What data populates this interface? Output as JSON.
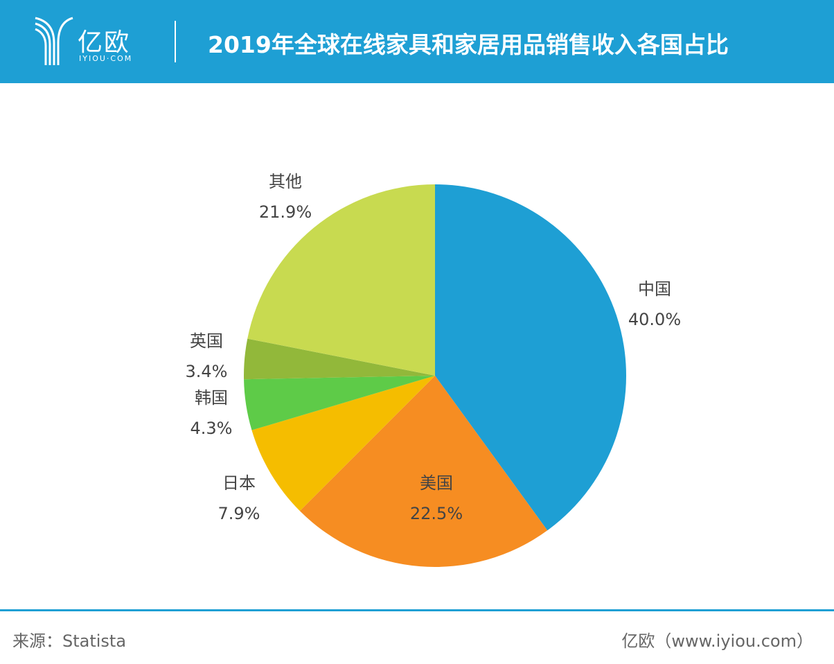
{
  "header": {
    "logo_text": "亿欧",
    "logo_sub": "IYIOU·COM",
    "title": "2019年全球在线家具和家居用品销售收入各国占比"
  },
  "chart_data": {
    "type": "pie",
    "title": "2019年全球在线家具和家居用品销售收入各国占比",
    "start": "top",
    "direction": "clockwise",
    "slices": [
      {
        "label": "中国",
        "value": 40.0,
        "display": "40.0%",
        "color": "#1e9fd4"
      },
      {
        "label": "美国",
        "value": 22.5,
        "display": "22.5%",
        "color": "#f68d22"
      },
      {
        "label": "日本",
        "value": 7.9,
        "display": "7.9%",
        "color": "#f5bd00"
      },
      {
        "label": "韩国",
        "value": 4.3,
        "display": "4.3%",
        "color": "#5ecb48"
      },
      {
        "label": "英国",
        "value": 3.4,
        "display": "3.4%",
        "color": "#92b83a"
      },
      {
        "label": "其他",
        "value": 21.9,
        "display": "21.9%",
        "color": "#c8da50"
      }
    ]
  },
  "footer": {
    "source": "来源：Statista",
    "credit": "亿欧（www.iyiou.com）"
  }
}
